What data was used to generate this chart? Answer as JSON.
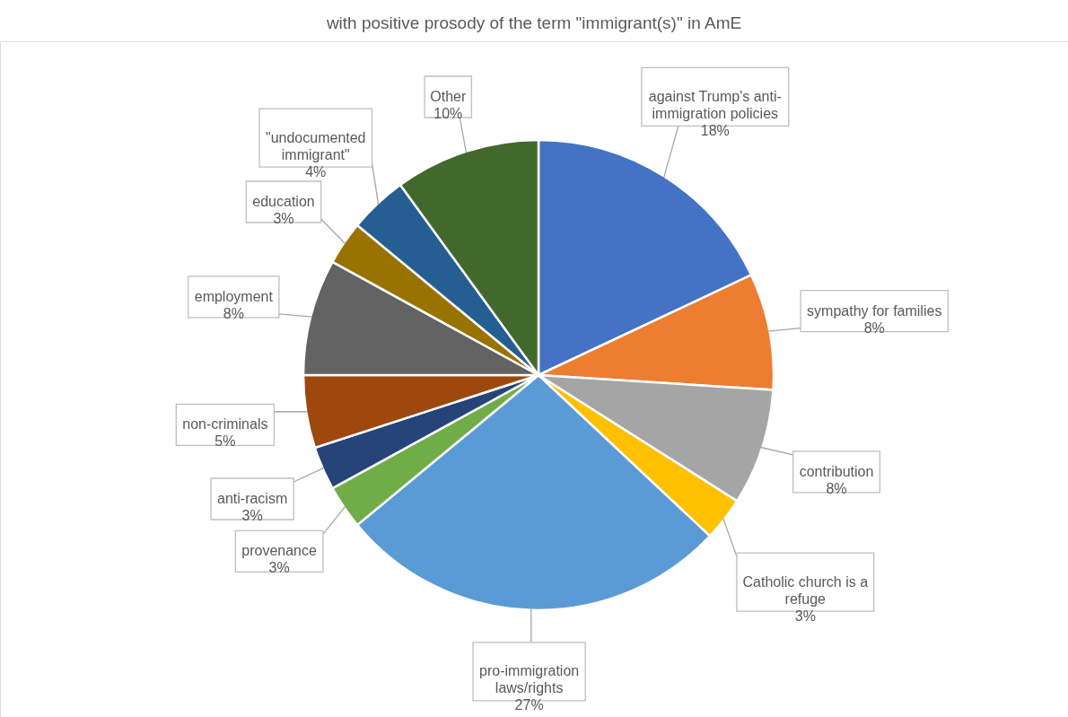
{
  "chart_data": {
    "type": "pie",
    "title": "with positive prosody of the term \"immigrant(s)\" in AmE",
    "categories": [
      "against Trump's anti-immigration policies",
      "sympathy for families",
      "contribution",
      "Catholic church is a refuge",
      "pro-immigration laws/rights",
      "provenance",
      "anti-racism",
      "non-criminals",
      "employment",
      "education",
      "\"undocumented immigrant\"",
      "Other"
    ],
    "values": [
      18,
      8,
      8,
      3,
      27,
      3,
      3,
      5,
      8,
      3,
      4,
      10
    ],
    "colors": [
      "#4472c4",
      "#ed7d31",
      "#a5a5a5",
      "#ffc000",
      "#5b9bd5",
      "#70ad47",
      "#264478",
      "#9e480e",
      "#636363",
      "#997300",
      "#255e91",
      "#43682b"
    ],
    "value_labels": [
      "18%",
      "8%",
      "8%",
      "3%",
      "27%",
      "3%",
      "3%",
      "5%",
      "8%",
      "3%",
      "4%",
      "10%"
    ]
  }
}
